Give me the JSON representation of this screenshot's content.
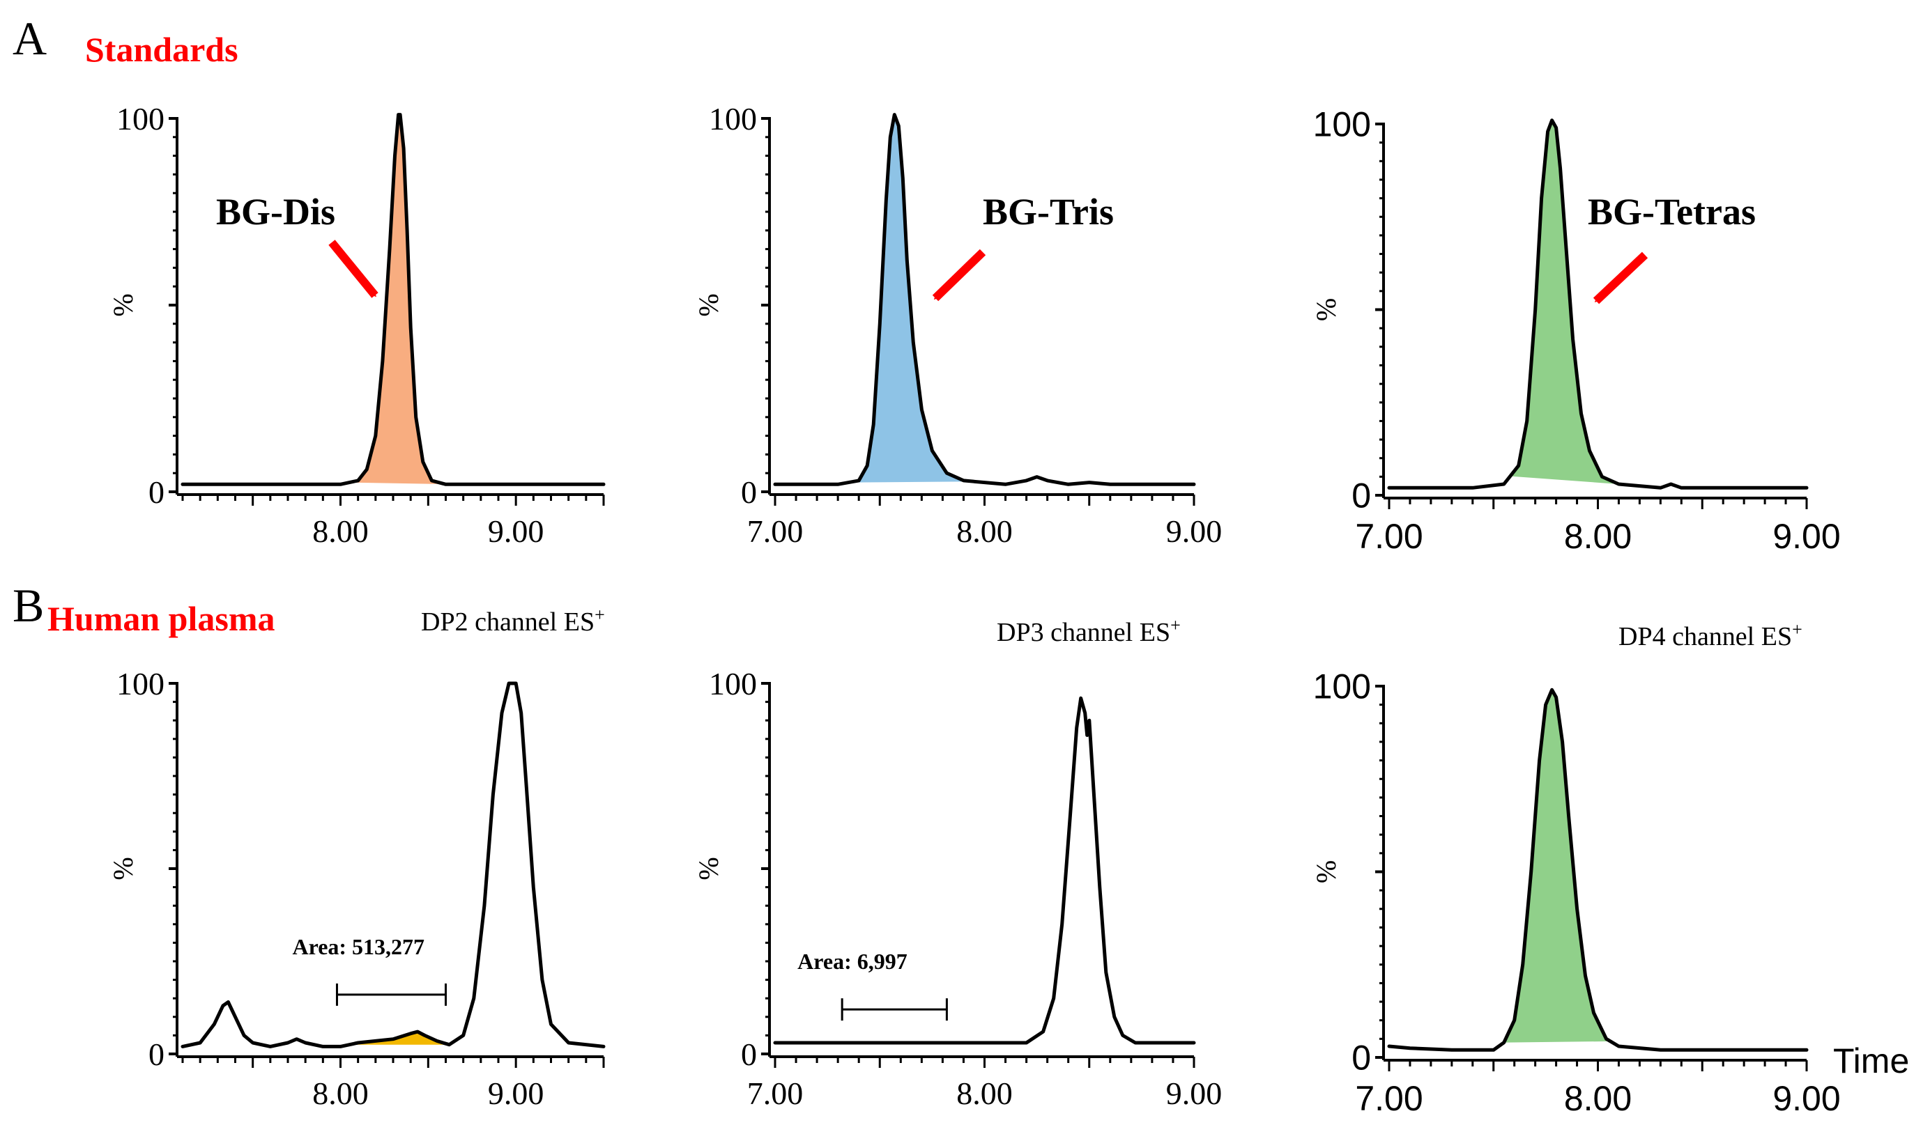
{
  "figure": {
    "panel_a_letter": "A",
    "panel_a_title": "Standards",
    "panel_b_letter": "B",
    "panel_b_title": "Human plasma",
    "time_label": "Time",
    "colors": {
      "title_red": "#ff0000",
      "arrow_red": "#ff0000",
      "orange_fill": "#f8ad80",
      "blue_fill": "#8ec3e6",
      "green_fill": "#90d08a",
      "yellow_fill": "#f2b800",
      "trace": "#000000"
    }
  },
  "chart_data": [
    {
      "id": "a1",
      "type": "line",
      "panel": "A",
      "title": "",
      "xlabel": "",
      "ylabel": "%",
      "xlim": [
        7.1,
        9.5
      ],
      "ylim": [
        0,
        100
      ],
      "yticks": [
        0,
        50,
        100
      ],
      "ytick_labels": [
        "0",
        "",
        "100"
      ],
      "xticks": [
        8.0,
        9.0
      ],
      "xtick_labels": [
        "8.00",
        "9.00"
      ],
      "minor_tick_step": 0.1,
      "series": [
        {
          "name": "BG-Dis",
          "x": [
            7.1,
            7.8,
            8.0,
            8.1,
            8.15,
            8.2,
            8.24,
            8.28,
            8.31,
            8.33,
            8.34,
            8.36,
            8.38,
            8.4,
            8.43,
            8.47,
            8.52,
            8.6,
            8.8,
            9.5
          ],
          "y": [
            2,
            2,
            2,
            3,
            6,
            15,
            35,
            65,
            90,
            101,
            101,
            92,
            70,
            44,
            20,
            8,
            3,
            2,
            2,
            2
          ]
        }
      ],
      "fill": {
        "from": 8.05,
        "to": 8.65,
        "color": "orange_fill"
      },
      "annotation": {
        "text": "BG-Dis",
        "arrow": true
      }
    },
    {
      "id": "a2",
      "type": "line",
      "panel": "A",
      "title": "",
      "xlabel": "",
      "ylabel": "%",
      "xlim": [
        7.0,
        9.0
      ],
      "ylim": [
        0,
        100
      ],
      "yticks": [
        0,
        50,
        100
      ],
      "ytick_labels": [
        "0",
        "",
        "100"
      ],
      "xticks": [
        7.0,
        8.0,
        9.0
      ],
      "xtick_labels": [
        "7.00",
        "8.00",
        "9.00"
      ],
      "minor_tick_step": 0.1,
      "series": [
        {
          "name": "BG-Tris",
          "x": [
            7.0,
            7.3,
            7.4,
            7.44,
            7.47,
            7.5,
            7.53,
            7.55,
            7.57,
            7.59,
            7.61,
            7.63,
            7.66,
            7.7,
            7.75,
            7.82,
            7.9,
            8.1,
            8.2,
            8.25,
            8.3,
            8.4,
            8.5,
            8.6,
            8.7,
            9.0
          ],
          "y": [
            2,
            2,
            3,
            7,
            18,
            45,
            78,
            95,
            101,
            98,
            84,
            62,
            40,
            22,
            11,
            5,
            3,
            2,
            3,
            4,
            3,
            2,
            2.5,
            2,
            2,
            2
          ]
        }
      ],
      "fill": {
        "from": 7.35,
        "to": 7.95,
        "color": "blue_fill"
      },
      "annotation": {
        "text": "BG-Tris",
        "arrow": true
      }
    },
    {
      "id": "a3",
      "type": "line",
      "panel": "A",
      "title": "",
      "xlabel": "",
      "ylabel": "%",
      "xlim": [
        7.0,
        9.0
      ],
      "ylim": [
        0,
        100
      ],
      "yticks": [
        0,
        50,
        100
      ],
      "ytick_labels": [
        "0",
        "",
        "100"
      ],
      "xticks": [
        7.0,
        8.0,
        9.0
      ],
      "xtick_labels": [
        "7.00",
        "8.00",
        "9.00"
      ],
      "minor_tick_step": 0.1,
      "series": [
        {
          "name": "BG-Tetras",
          "x": [
            7.0,
            7.2,
            7.4,
            7.55,
            7.62,
            7.66,
            7.7,
            7.73,
            7.76,
            7.78,
            7.8,
            7.82,
            7.85,
            7.88,
            7.92,
            7.96,
            8.02,
            8.1,
            8.3,
            8.35,
            8.4,
            8.6,
            9.0
          ],
          "y": [
            2,
            2,
            2,
            3,
            8,
            20,
            50,
            80,
            98,
            101,
            99,
            88,
            65,
            42,
            22,
            12,
            5,
            3,
            2,
            3,
            2,
            2,
            2
          ]
        }
      ],
      "fill": {
        "from": 7.58,
        "to": 8.1,
        "color": "green_fill"
      },
      "annotation": {
        "text": "BG-Tetras",
        "arrow": true
      }
    },
    {
      "id": "b1",
      "type": "line",
      "panel": "B",
      "title": "DP2 channel ES",
      "title_superscript": "+",
      "xlabel": "",
      "ylabel": "%",
      "xlim": [
        7.1,
        9.5
      ],
      "ylim": [
        0,
        100
      ],
      "yticks": [
        0,
        50,
        100
      ],
      "ytick_labels": [
        "0",
        "",
        "100"
      ],
      "xticks": [
        8.0,
        9.0
      ],
      "xtick_labels": [
        "8.00",
        "9.00"
      ],
      "minor_tick_step": 0.1,
      "series": [
        {
          "name": "DP2",
          "x": [
            7.1,
            7.2,
            7.28,
            7.33,
            7.36,
            7.4,
            7.45,
            7.5,
            7.6,
            7.7,
            7.75,
            7.8,
            7.9,
            8.0,
            8.1,
            8.2,
            8.3,
            8.4,
            8.44,
            8.48,
            8.55,
            8.62,
            8.7,
            8.76,
            8.82,
            8.87,
            8.92,
            8.96,
            9.0,
            9.03,
            9.06,
            9.1,
            9.15,
            9.2,
            9.3,
            9.5
          ],
          "y": [
            2,
            3,
            8,
            13,
            14,
            10,
            5,
            3,
            2,
            3,
            4,
            3,
            2,
            2,
            3,
            3.5,
            4,
            5.5,
            6,
            5,
            3.5,
            2.5,
            5,
            15,
            40,
            70,
            92,
            100,
            100,
            92,
            72,
            45,
            20,
            8,
            3,
            2
          ]
        }
      ],
      "fill": {
        "from": 8.05,
        "to": 8.62,
        "color": "yellow_fill"
      },
      "area_bar": {
        "x_start": 7.98,
        "x_end": 8.6,
        "y": 16,
        "label": "Area: 513,277"
      }
    },
    {
      "id": "b2",
      "type": "line",
      "panel": "B",
      "title": "DP3 channel ES",
      "title_superscript": "+",
      "xlabel": "",
      "ylabel": "%",
      "xlim": [
        7.0,
        9.0
      ],
      "ylim": [
        0,
        100
      ],
      "yticks": [
        0,
        50,
        100
      ],
      "ytick_labels": [
        "0",
        "",
        "100"
      ],
      "xticks": [
        7.0,
        8.0,
        9.0
      ],
      "xtick_labels": [
        "7.00",
        "8.00",
        "9.00"
      ],
      "minor_tick_step": 0.1,
      "series": [
        {
          "name": "DP3",
          "x": [
            7.0,
            7.5,
            8.0,
            8.2,
            8.28,
            8.33,
            8.37,
            8.41,
            8.44,
            8.46,
            8.48,
            8.49,
            8.5,
            8.52,
            8.55,
            8.58,
            8.62,
            8.66,
            8.72,
            8.8,
            9.0
          ],
          "y": [
            3,
            3,
            3,
            3,
            6,
            15,
            35,
            65,
            88,
            96,
            92,
            86,
            90,
            72,
            45,
            22,
            10,
            5,
            3,
            3,
            3
          ]
        }
      ],
      "area_bar": {
        "x_start": 7.32,
        "x_end": 7.82,
        "y": 12,
        "label": "Area: 6,997"
      }
    },
    {
      "id": "b3",
      "type": "line",
      "panel": "B",
      "title": "DP4 channel ES",
      "title_superscript": "+",
      "xlabel": "",
      "ylabel": "%",
      "xlim": [
        7.0,
        9.0
      ],
      "ylim": [
        0,
        100
      ],
      "yticks": [
        0,
        50,
        100
      ],
      "ytick_labels": [
        "0",
        "",
        "100"
      ],
      "xticks": [
        7.0,
        8.0,
        9.0
      ],
      "xtick_labels": [
        "7.00",
        "8.00",
        "9.00"
      ],
      "minor_tick_step": 0.1,
      "series": [
        {
          "name": "DP4",
          "x": [
            7.0,
            7.1,
            7.3,
            7.5,
            7.55,
            7.6,
            7.64,
            7.68,
            7.72,
            7.75,
            7.78,
            7.8,
            7.83,
            7.86,
            7.9,
            7.94,
            7.98,
            8.04,
            8.1,
            8.3,
            8.6,
            9.0
          ],
          "y": [
            3,
            2.5,
            2,
            2,
            4,
            10,
            25,
            50,
            80,
            95,
            99,
            97,
            85,
            65,
            40,
            22,
            12,
            5,
            3,
            2,
            2,
            2
          ]
        }
      ],
      "fill": {
        "from": 7.55,
        "to": 8.06,
        "color": "green_fill"
      },
      "time_axis_label": true
    }
  ]
}
